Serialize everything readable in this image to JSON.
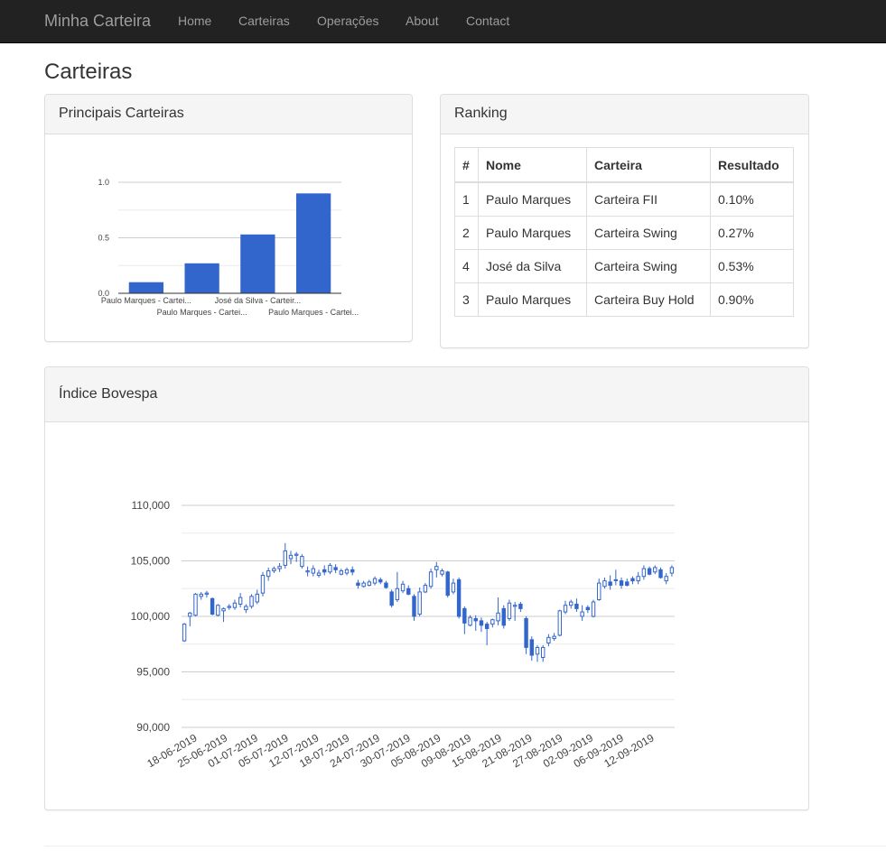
{
  "navbar": {
    "brand": "Minha Carteira",
    "items": [
      "Home",
      "Carteiras",
      "Operações",
      "About",
      "Contact"
    ]
  },
  "page_title": "Carteiras",
  "panels": {
    "principais": "Principais Carteiras",
    "ranking": "Ranking",
    "bovespa": "Índice Bovespa"
  },
  "ranking": {
    "headers": [
      "#",
      "Nome",
      "Carteira",
      "Resultado"
    ],
    "rows": [
      [
        "1",
        "Paulo Marques",
        "Carteira FII",
        "0.10%"
      ],
      [
        "2",
        "Paulo Marques",
        "Carteira Swing",
        "0.27%"
      ],
      [
        "4",
        "José da Silva",
        "Carteira Swing",
        "0.53%"
      ],
      [
        "3",
        "Paulo Marques",
        "Carteira Buy Hold",
        "0.90%"
      ]
    ]
  },
  "colors": {
    "series": "#3366cc",
    "navbar": "#222222"
  },
  "chart_data": [
    {
      "type": "bar",
      "title": "",
      "categories": [
        "Paulo Marques - Cartei...",
        "Paulo Marques - Cartei...",
        "José da Silva - Carteir...",
        "Paulo Marques - Cartei..."
      ],
      "values": [
        0.1,
        0.27,
        0.53,
        0.9
      ],
      "yticks": [
        "0.0",
        "0.5",
        "1.0"
      ],
      "ylim": [
        0,
        1.0
      ],
      "grid": true,
      "legend": "none"
    },
    {
      "type": "candlestick",
      "title": "",
      "ylim": [
        90000,
        110000
      ],
      "yticks": [
        "90,000",
        "95,000",
        "100,000",
        "105,000",
        "110,000"
      ],
      "xticks": [
        "18-06-2019",
        "25-06-2019",
        "01-07-2019",
        "05-07-2019",
        "12-07-2019",
        "18-07-2019",
        "24-07-2019",
        "30-07-2019",
        "05-08-2019",
        "09-08-2019",
        "15-08-2019",
        "21-08-2019",
        "27-08-2019",
        "02-09-2019",
        "06-09-2019",
        "12-09-2019"
      ],
      "grid": true,
      "legend": "none",
      "candles": [
        [
          97800,
          99300,
          97700,
          99400
        ],
        [
          100000,
          100300,
          99100,
          100400
        ],
        [
          100100,
          102000,
          100000,
          102100
        ],
        [
          101800,
          102000,
          101500,
          102200
        ],
        [
          102000,
          102100,
          101700,
          102300
        ],
        [
          101600,
          100200,
          100100,
          101700
        ],
        [
          100100,
          101000,
          100000,
          101100
        ],
        [
          100500,
          100700,
          99500,
          100800
        ],
        [
          100800,
          100900,
          100600,
          101100
        ],
        [
          100800,
          101200,
          100600,
          101500
        ],
        [
          101100,
          101700,
          100800,
          102100
        ],
        [
          100600,
          100900,
          100300,
          101100
        ],
        [
          100900,
          101800,
          100700,
          102000
        ],
        [
          101300,
          102000,
          101100,
          102400
        ],
        [
          102100,
          103700,
          101800,
          104000
        ],
        [
          103600,
          104100,
          103200,
          104400
        ],
        [
          104100,
          104300,
          103900,
          104500
        ],
        [
          104300,
          104500,
          104000,
          104800
        ],
        [
          104600,
          105900,
          104300,
          106600
        ],
        [
          105200,
          105500,
          104700,
          105900
        ],
        [
          105500,
          105600,
          104900,
          105800
        ],
        [
          104500,
          105400,
          104300,
          105600
        ],
        [
          104000,
          104100,
          103600,
          104500
        ],
        [
          103900,
          104300,
          103600,
          104600
        ],
        [
          103700,
          103900,
          103500,
          104200
        ],
        [
          104200,
          104000,
          103700,
          104600
        ],
        [
          104000,
          104600,
          103800,
          104800
        ],
        [
          104400,
          104200,
          103900,
          104700
        ],
        [
          103800,
          104100,
          103700,
          104300
        ],
        [
          103900,
          104200,
          103700,
          104400
        ],
        [
          104200,
          104000,
          103700,
          104500
        ],
        [
          103000,
          102800,
          102500,
          103300
        ],
        [
          102700,
          103000,
          102600,
          103200
        ],
        [
          102800,
          103100,
          102700,
          103300
        ],
        [
          103000,
          103400,
          102800,
          103600
        ],
        [
          103300,
          103100,
          102900,
          103500
        ],
        [
          103000,
          102600,
          102500,
          103200
        ],
        [
          102200,
          101000,
          100800,
          102400
        ],
        [
          101500,
          102500,
          101300,
          104000
        ],
        [
          102300,
          102900,
          102100,
          103200
        ],
        [
          102500,
          102000,
          101900,
          102800
        ],
        [
          101800,
          100000,
          99600,
          102000
        ],
        [
          100200,
          102200,
          100000,
          102600
        ],
        [
          102200,
          102800,
          102100,
          103000
        ],
        [
          102700,
          104000,
          102500,
          104300
        ],
        [
          104200,
          104500,
          103500,
          104900
        ],
        [
          103800,
          104100,
          103600,
          104300
        ],
        [
          104000,
          101900,
          101700,
          104100
        ],
        [
          102200,
          103000,
          102000,
          103400
        ],
        [
          103300,
          100000,
          99800,
          103500
        ],
        [
          100700,
          99400,
          98400,
          100900
        ],
        [
          99200,
          99900,
          99100,
          100100
        ],
        [
          99800,
          99600,
          98700,
          100100
        ],
        [
          99600,
          99200,
          98600,
          99900
        ],
        [
          99300,
          98900,
          97400,
          99500
        ],
        [
          99300,
          99700,
          99000,
          99800
        ],
        [
          99600,
          100300,
          99200,
          101700
        ],
        [
          100700,
          99200,
          98900,
          101000
        ],
        [
          99800,
          101200,
          99600,
          101500
        ],
        [
          100900,
          101000,
          99600,
          101300
        ],
        [
          101100,
          100700,
          100400,
          101300
        ],
        [
          99800,
          97200,
          96600,
          100000
        ],
        [
          97900,
          96500,
          96000,
          98200
        ],
        [
          96600,
          97200,
          95900,
          97400
        ],
        [
          96300,
          97200,
          95900,
          97400
        ],
        [
          97600,
          98100,
          97300,
          98400
        ],
        [
          98000,
          98200,
          97800,
          98500
        ],
        [
          98300,
          100500,
          98200,
          100600
        ],
        [
          100400,
          101000,
          100200,
          101400
        ],
        [
          101000,
          101300,
          100700,
          101500
        ],
        [
          101100,
          100700,
          100400,
          101600
        ],
        [
          100000,
          100400,
          99600,
          101000
        ],
        [
          100800,
          100600,
          100300,
          101000
        ],
        [
          100000,
          101300,
          99900,
          101500
        ],
        [
          101500,
          103000,
          101400,
          103400
        ],
        [
          102700,
          103200,
          102500,
          103500
        ],
        [
          103100,
          102800,
          102400,
          103700
        ],
        [
          103300,
          103300,
          102800,
          104200
        ],
        [
          103200,
          102800,
          102500,
          103500
        ],
        [
          103100,
          102800,
          102700,
          103400
        ],
        [
          103400,
          103200,
          102900,
          103600
        ],
        [
          103200,
          103600,
          102900,
          104000
        ],
        [
          103600,
          104300,
          103300,
          104600
        ],
        [
          104300,
          103800,
          103700,
          104500
        ],
        [
          104000,
          104400,
          103800,
          104600
        ],
        [
          104200,
          103500,
          103400,
          104400
        ],
        [
          103200,
          103600,
          102900,
          103900
        ],
        [
          103900,
          104400,
          103600,
          104600
        ]
      ]
    }
  ]
}
